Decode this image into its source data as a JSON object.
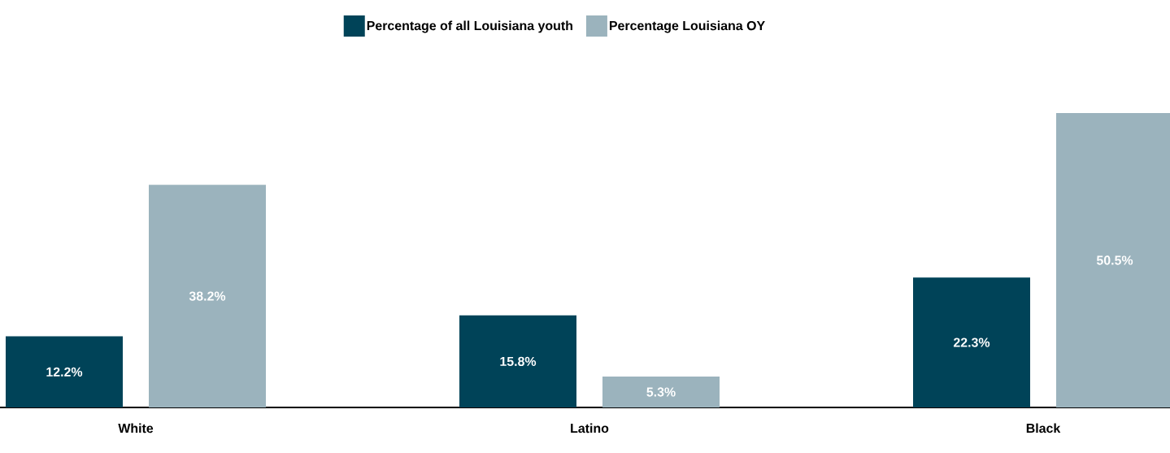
{
  "chart_data": {
    "type": "bar",
    "categories": [
      "White",
      "Latino",
      "Black"
    ],
    "series": [
      {
        "name": "Percentage of all Louisiana youth",
        "color": "#004358",
        "values": [
          12.2,
          15.8,
          22.3
        ],
        "value_labels": [
          "12.2%",
          "15.8%",
          "22.3%"
        ]
      },
      {
        "name": "Percentage Louisiana OY",
        "color": "#9bb3bd",
        "values": [
          38.2,
          5.3,
          50.5
        ],
        "value_labels": [
          "38.2%",
          "5.3%",
          "50.5%"
        ]
      }
    ],
    "legend": "top"
  }
}
